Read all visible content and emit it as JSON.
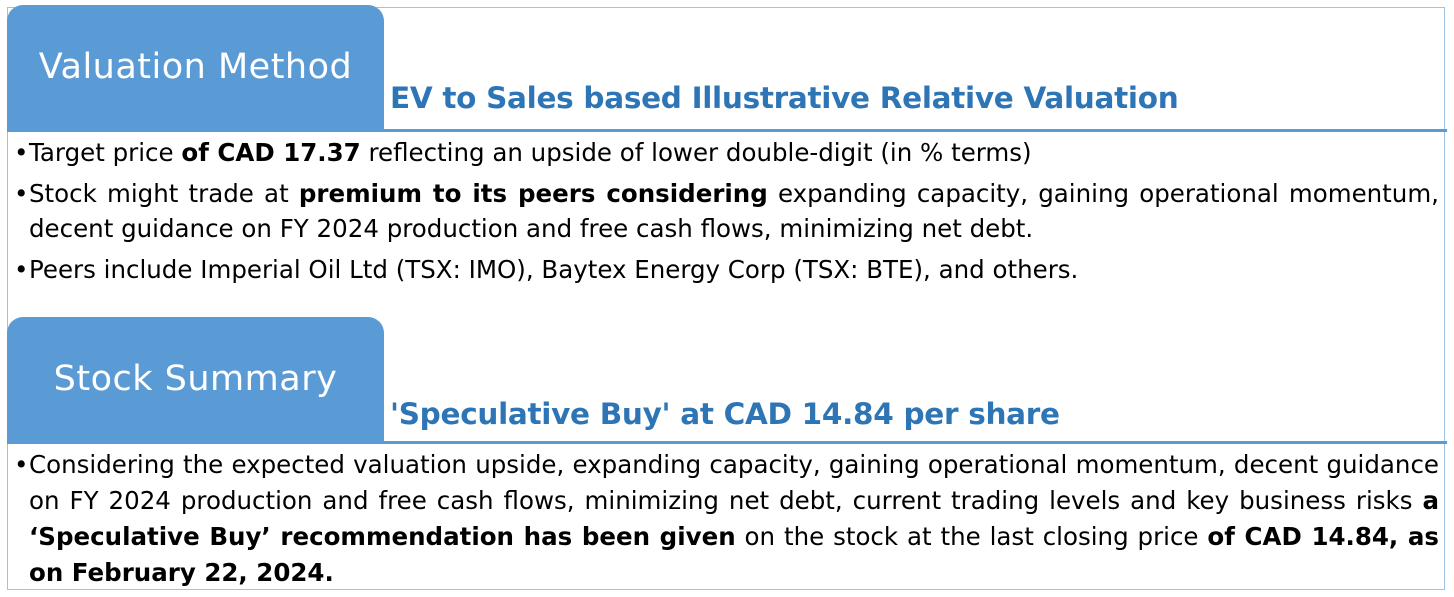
{
  "valuation": {
    "tab_label": "Valuation Method",
    "subtitle": "EV to Sales based Illustrative Relative Valuation",
    "bullets": [
      {
        "a": "Target price ",
        "b": "of CAD 17.37",
        "c": " reflecting an upside of lower double-digit (in % terms)"
      },
      {
        "a": "Stock might trade at ",
        "b": "premium to its peers considering",
        "c": " expanding capacity, gaining operational momentum, decent guidance on FY 2024 production and free cash flows, minimizing net debt."
      },
      {
        "a": "Peers include Imperial Oil Ltd (TSX: IMO), Baytex Energy Corp (TSX: BTE), and others."
      }
    ]
  },
  "summary": {
    "tab_label": "Stock Summary",
    "subtitle": "'Speculative Buy' at CAD 14.84 per share",
    "bullet": {
      "a": "Considering the expected valuation upside, expanding capacity, gaining operational momentum, decent guidance on FY 2024 production and free cash flows, minimizing net debt, current trading levels and key business risks ",
      "b": "a ‘Speculative Buy’ recommendation has been given",
      "c": " on the stock at the last closing price ",
      "d": "of CAD 14.84, as on February 22, 2024."
    }
  },
  "colors": {
    "tab_bg": "#5b9bd5",
    "subtitle": "#2e75b6",
    "frame_border": "#9dc3e6"
  }
}
